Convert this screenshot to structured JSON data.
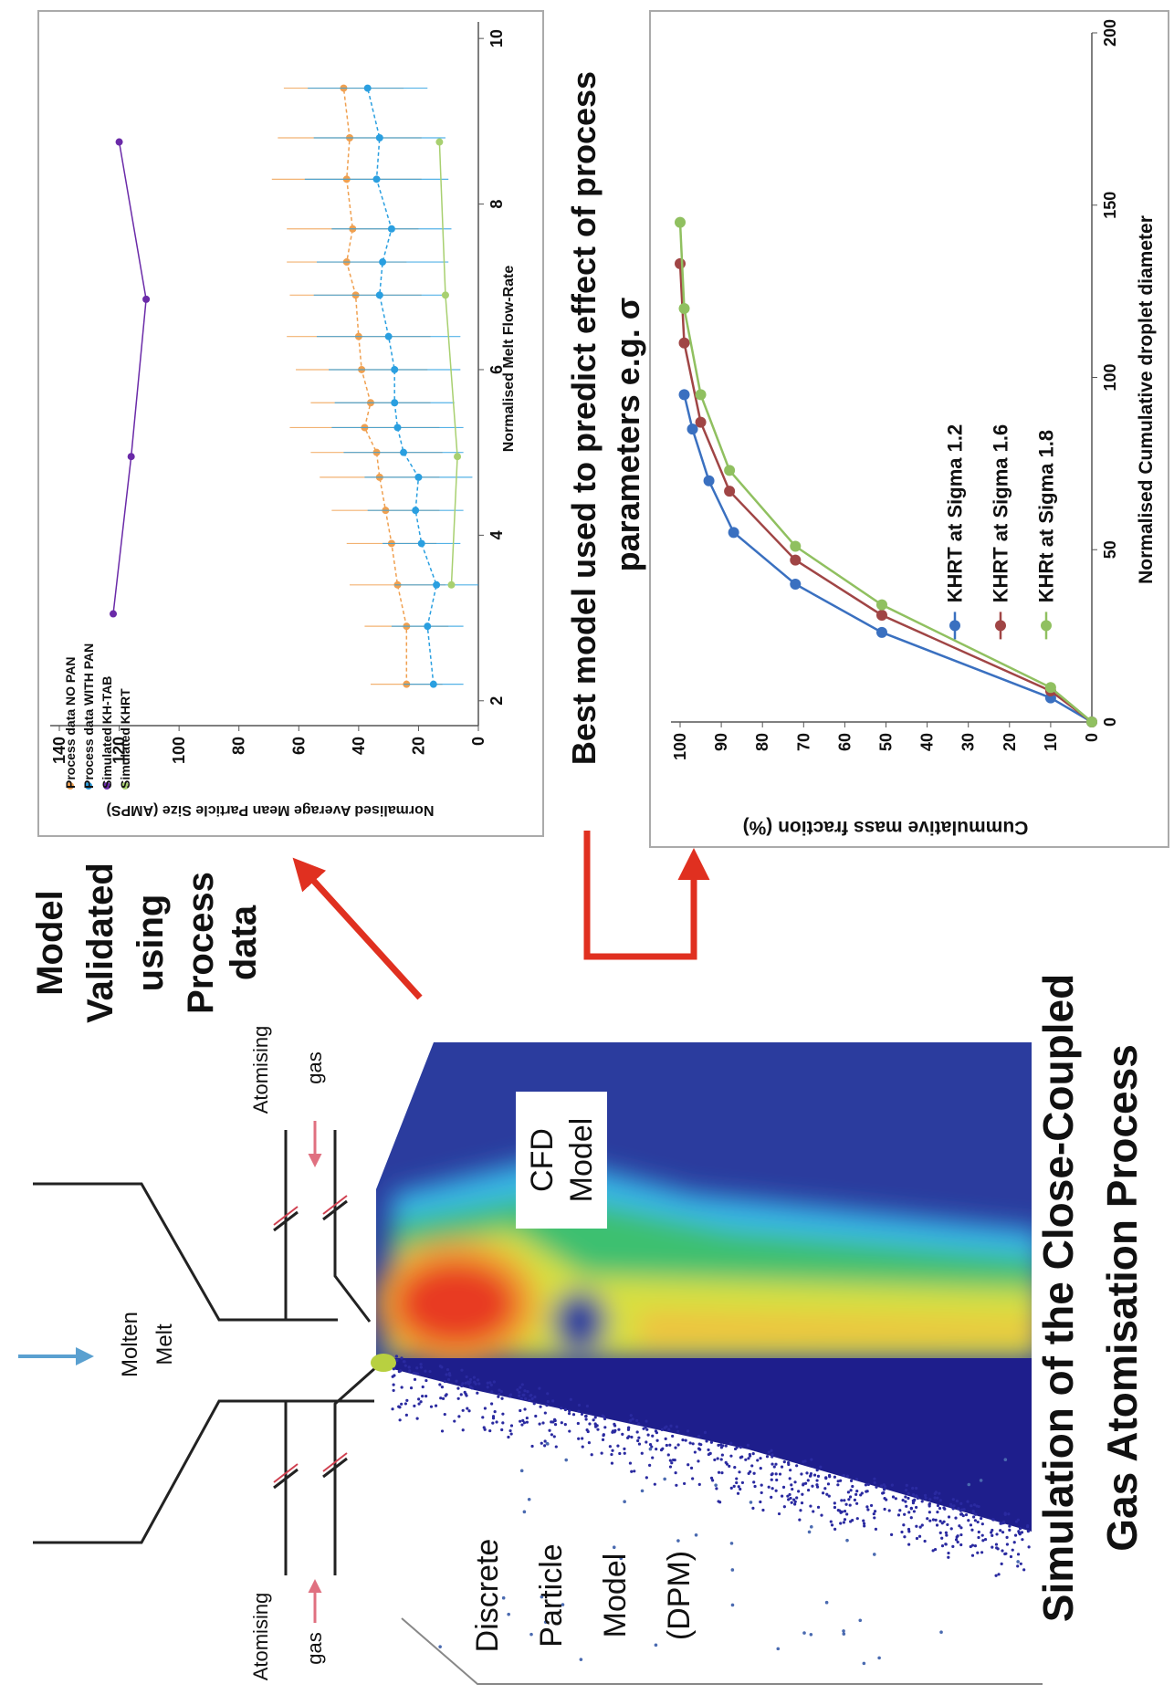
{
  "title": [
    "Simulation of the Close-Coupled",
    "Gas Atomisation Process"
  ],
  "schematic": {
    "melt_label": [
      "Molten",
      "Melt"
    ],
    "gas_label_left": [
      "Atomising",
      "gas"
    ],
    "gas_label_right": [
      "Atomising",
      "gas"
    ],
    "cfd_label": [
      "CFD",
      "Model"
    ],
    "dpm_label": [
      "Discrete",
      "Particle",
      "Model",
      "(DPM)"
    ]
  },
  "validation_note": [
    "Model",
    "Validated",
    "using",
    "Process",
    "data"
  ],
  "prediction_note": [
    "Best model used to predict effect of process",
    "parameters e.g. σ"
  ],
  "chart_data": [
    {
      "type": "scatter",
      "x_label": "Normalised Melt Flow-Rate",
      "y_label": "Normalised Average Mean Particle Size (AMPS)",
      "xlim": [
        1.7,
        10.2
      ],
      "xticks": [
        2,
        4,
        6,
        8,
        10
      ],
      "ylim": [
        0,
        140
      ],
      "yticks": [
        0,
        20,
        40,
        60,
        80,
        100,
        120,
        140
      ],
      "legend": "top-left",
      "series": [
        {
          "name": "Process data NO PAN",
          "color": "#f0a050",
          "x": [
            2.2,
            2.9,
            3.4,
            3.9,
            4.3,
            4.7,
            5.0,
            5.3,
            5.6,
            6.0,
            6.4,
            6.9,
            7.3,
            7.7,
            8.3,
            8.8,
            9.4
          ],
          "values": [
            24,
            24,
            27,
            29,
            31,
            33,
            34,
            38,
            36,
            39,
            40,
            41,
            44,
            42,
            44,
            43,
            45
          ],
          "errors": [
            12,
            14,
            16,
            15,
            18,
            20,
            22,
            25,
            20,
            22,
            24,
            22,
            20,
            22,
            25,
            24,
            20
          ]
        },
        {
          "name": "Process data WITH PAN",
          "color": "#2a9fe0",
          "x": [
            2.2,
            2.9,
            3.4,
            3.9,
            4.3,
            4.7,
            5.0,
            5.3,
            5.6,
            6.0,
            6.4,
            6.9,
            7.3,
            7.7,
            8.3,
            8.8,
            9.4
          ],
          "values": [
            15,
            17,
            14,
            19,
            21,
            20,
            25,
            27,
            28,
            28,
            30,
            33,
            32,
            29,
            34,
            33,
            37
          ],
          "errors": [
            10,
            12,
            14,
            13,
            16,
            18,
            20,
            22,
            20,
            22,
            24,
            22,
            22,
            20,
            24,
            22,
            20
          ]
        },
        {
          "name": "Simulated KH-TAB",
          "color": "#6a2aa8",
          "x": [
            3.05,
            4.95,
            6.85,
            8.75
          ],
          "values": [
            122,
            116,
            111,
            120
          ]
        },
        {
          "name": "Simulated KHRT",
          "color": "#a8d070",
          "x": [
            3.4,
            4.95,
            6.9,
            8.75
          ],
          "values": [
            9,
            7,
            11,
            13
          ]
        }
      ]
    },
    {
      "type": "line",
      "x_label": "Normalised Cumulative droplet diameter",
      "y_label": "Cummulative mass fraction (%)",
      "xlim": [
        0,
        200
      ],
      "xticks": [
        0,
        50,
        100,
        150,
        200
      ],
      "ylim": [
        0,
        100
      ],
      "yticks": [
        0,
        10,
        20,
        30,
        40,
        50,
        60,
        70,
        80,
        90,
        100
      ],
      "legend": "lower-center",
      "series": [
        {
          "name": "KHRT at Sigma 1.2",
          "color": "#3a70c0",
          "x": [
            0,
            7,
            26,
            40,
            55,
            70,
            85,
            95
          ],
          "values": [
            0,
            10,
            51,
            72,
            87,
            93,
            97,
            99
          ]
        },
        {
          "name": "KHRT at Sigma 1.6",
          "color": "#a04545",
          "x": [
            0,
            9,
            31,
            47,
            67,
            87,
            110,
            133
          ],
          "values": [
            0,
            10,
            51,
            72,
            88,
            95,
            99,
            100
          ]
        },
        {
          "name": "KHRt at Sigma 1.8",
          "color": "#90c060",
          "x": [
            0,
            10,
            34,
            51,
            73,
            95,
            120,
            145
          ],
          "values": [
            0,
            10,
            51,
            72,
            88,
            95,
            99,
            100
          ]
        }
      ]
    }
  ]
}
